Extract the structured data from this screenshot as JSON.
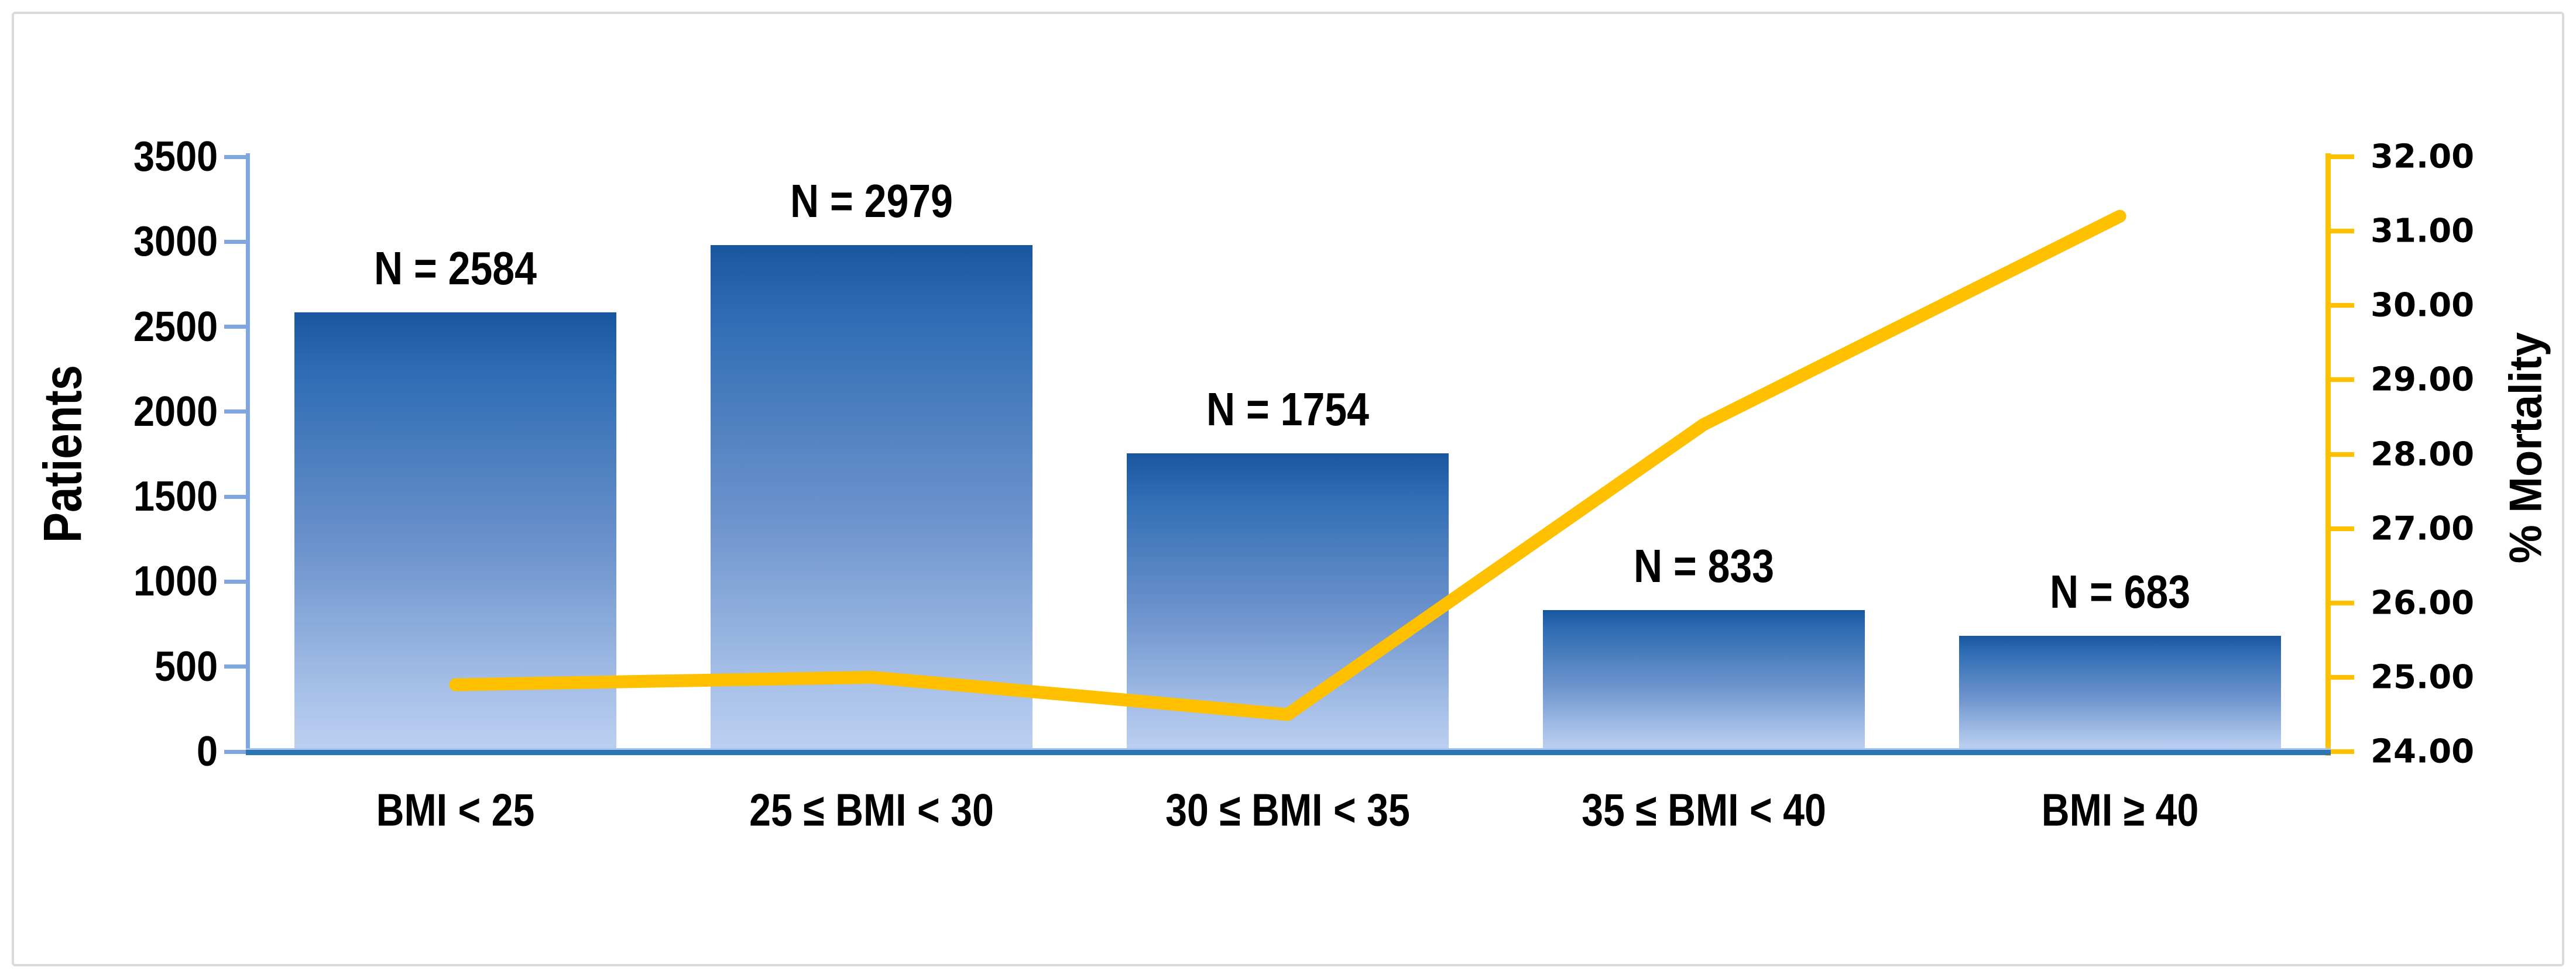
{
  "chart_data": {
    "type": "combo",
    "title": "",
    "categories": [
      "BMI < 25",
      "25 ≤ BMI < 30",
      "30 ≤ BMI < 35",
      "35 ≤ BMI < 40",
      "BMI ≥ 40"
    ],
    "series": [
      {
        "name": "Patients",
        "type": "bar",
        "axis": "left",
        "values": [
          2584,
          2979,
          1754,
          833,
          683
        ],
        "data_labels": [
          "N = 2584",
          "N = 2979",
          "N = 1754",
          "N = 833",
          "N = 683"
        ]
      },
      {
        "name": "% Mortality",
        "type": "line",
        "axis": "right",
        "values": [
          24.9,
          25.0,
          24.5,
          28.4,
          31.2
        ]
      }
    ],
    "left_axis": {
      "title": "Patients",
      "min": 0,
      "max": 3500,
      "step": 500,
      "tick_labels": [
        "0",
        "500",
        "1000",
        "1500",
        "2000",
        "2500",
        "3000",
        "3500"
      ]
    },
    "right_axis": {
      "title": "% Mortality",
      "min": 24,
      "max": 32,
      "step": 1,
      "tick_labels": [
        "24.00",
        "25.00",
        "26.00",
        "27.00",
        "28.00",
        "29.00",
        "30.00",
        "31.00",
        "32.00"
      ]
    },
    "grid": false,
    "legend": false
  },
  "colors": {
    "bar_gradient": [
      "#1A56A0",
      "#2F6CB4",
      "#6E94CD",
      "#A9C2E9",
      "#BCCFF0"
    ],
    "bar_gradient_stops": [
      0,
      14,
      55,
      88,
      100
    ],
    "line": "#FFC000",
    "right_axis": "#FFC000",
    "left_axis": "#7FA6DE",
    "baseline": "#2E75B6",
    "baseline_edge": "#A6C4EC",
    "text": "#000000",
    "frame_border": "#DBDBDB",
    "background": "#FFFFFF"
  }
}
